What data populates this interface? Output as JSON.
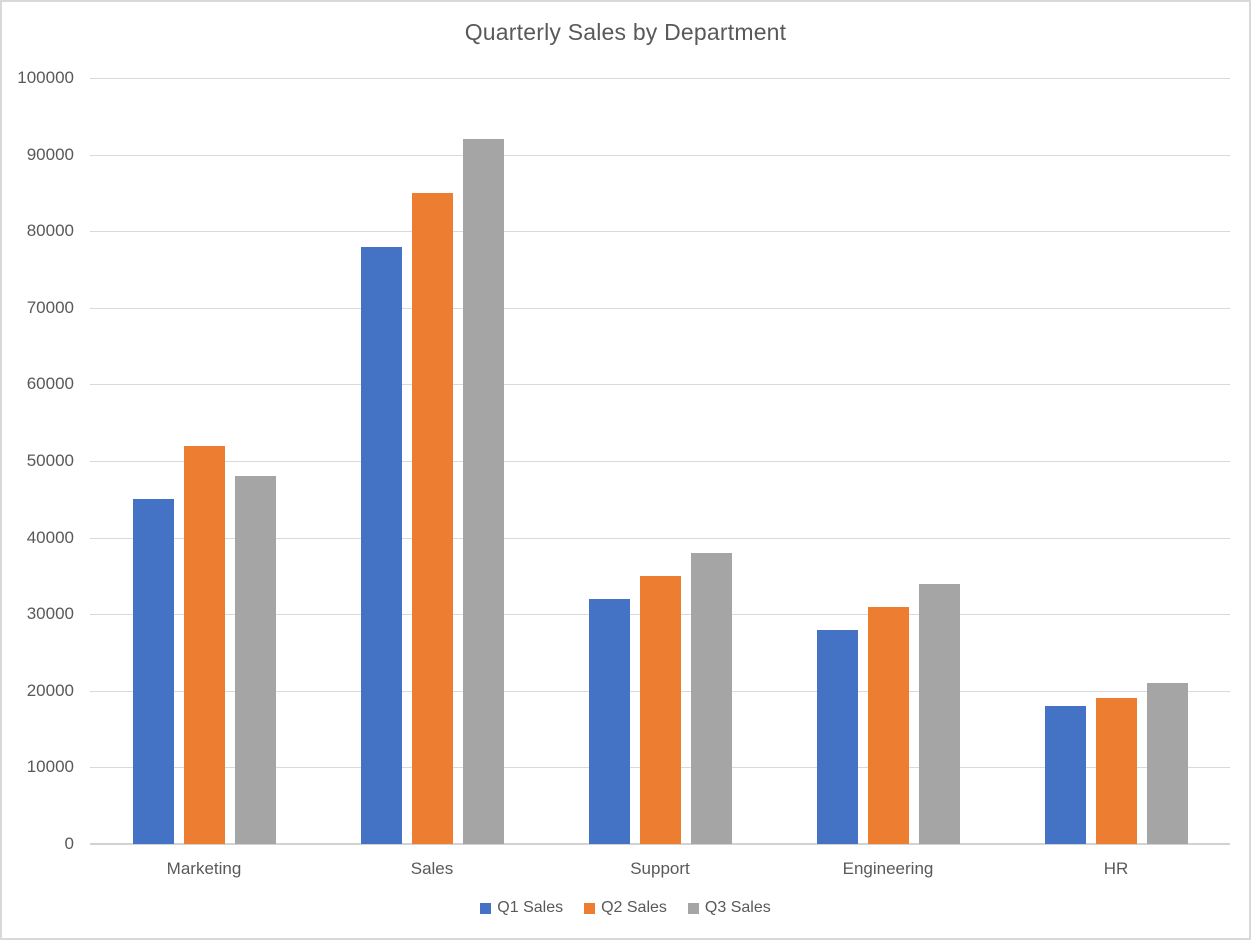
{
  "chart_data": {
    "type": "bar",
    "title": "Quarterly Sales by Department",
    "xlabel": "",
    "ylabel": "",
    "categories": [
      "Marketing",
      "Sales",
      "Support",
      "Engineering",
      "HR"
    ],
    "series": [
      {
        "name": "Q1 Sales",
        "color": "#4472C4",
        "values": [
          45000,
          78000,
          32000,
          28000,
          18000
        ]
      },
      {
        "name": "Q2 Sales",
        "color": "#ED7D31",
        "values": [
          52000,
          85000,
          35000,
          31000,
          19000
        ]
      },
      {
        "name": "Q3 Sales",
        "color": "#A5A5A5",
        "values": [
          48000,
          92000,
          38000,
          34000,
          21000
        ]
      }
    ],
    "ylim": [
      0,
      100000
    ],
    "ytick_step": 10000,
    "ytick_labels": [
      "0",
      "10000",
      "20000",
      "30000",
      "40000",
      "50000",
      "60000",
      "70000",
      "80000",
      "90000",
      "100000"
    ],
    "grid": true,
    "legend_position": "bottom"
  },
  "colors": {
    "text": "#595959",
    "gridline": "#D9D9D9",
    "axis_line": "#D2D2D2",
    "background": "#FFFFFF",
    "frame_border": "#D9D9D9"
  }
}
